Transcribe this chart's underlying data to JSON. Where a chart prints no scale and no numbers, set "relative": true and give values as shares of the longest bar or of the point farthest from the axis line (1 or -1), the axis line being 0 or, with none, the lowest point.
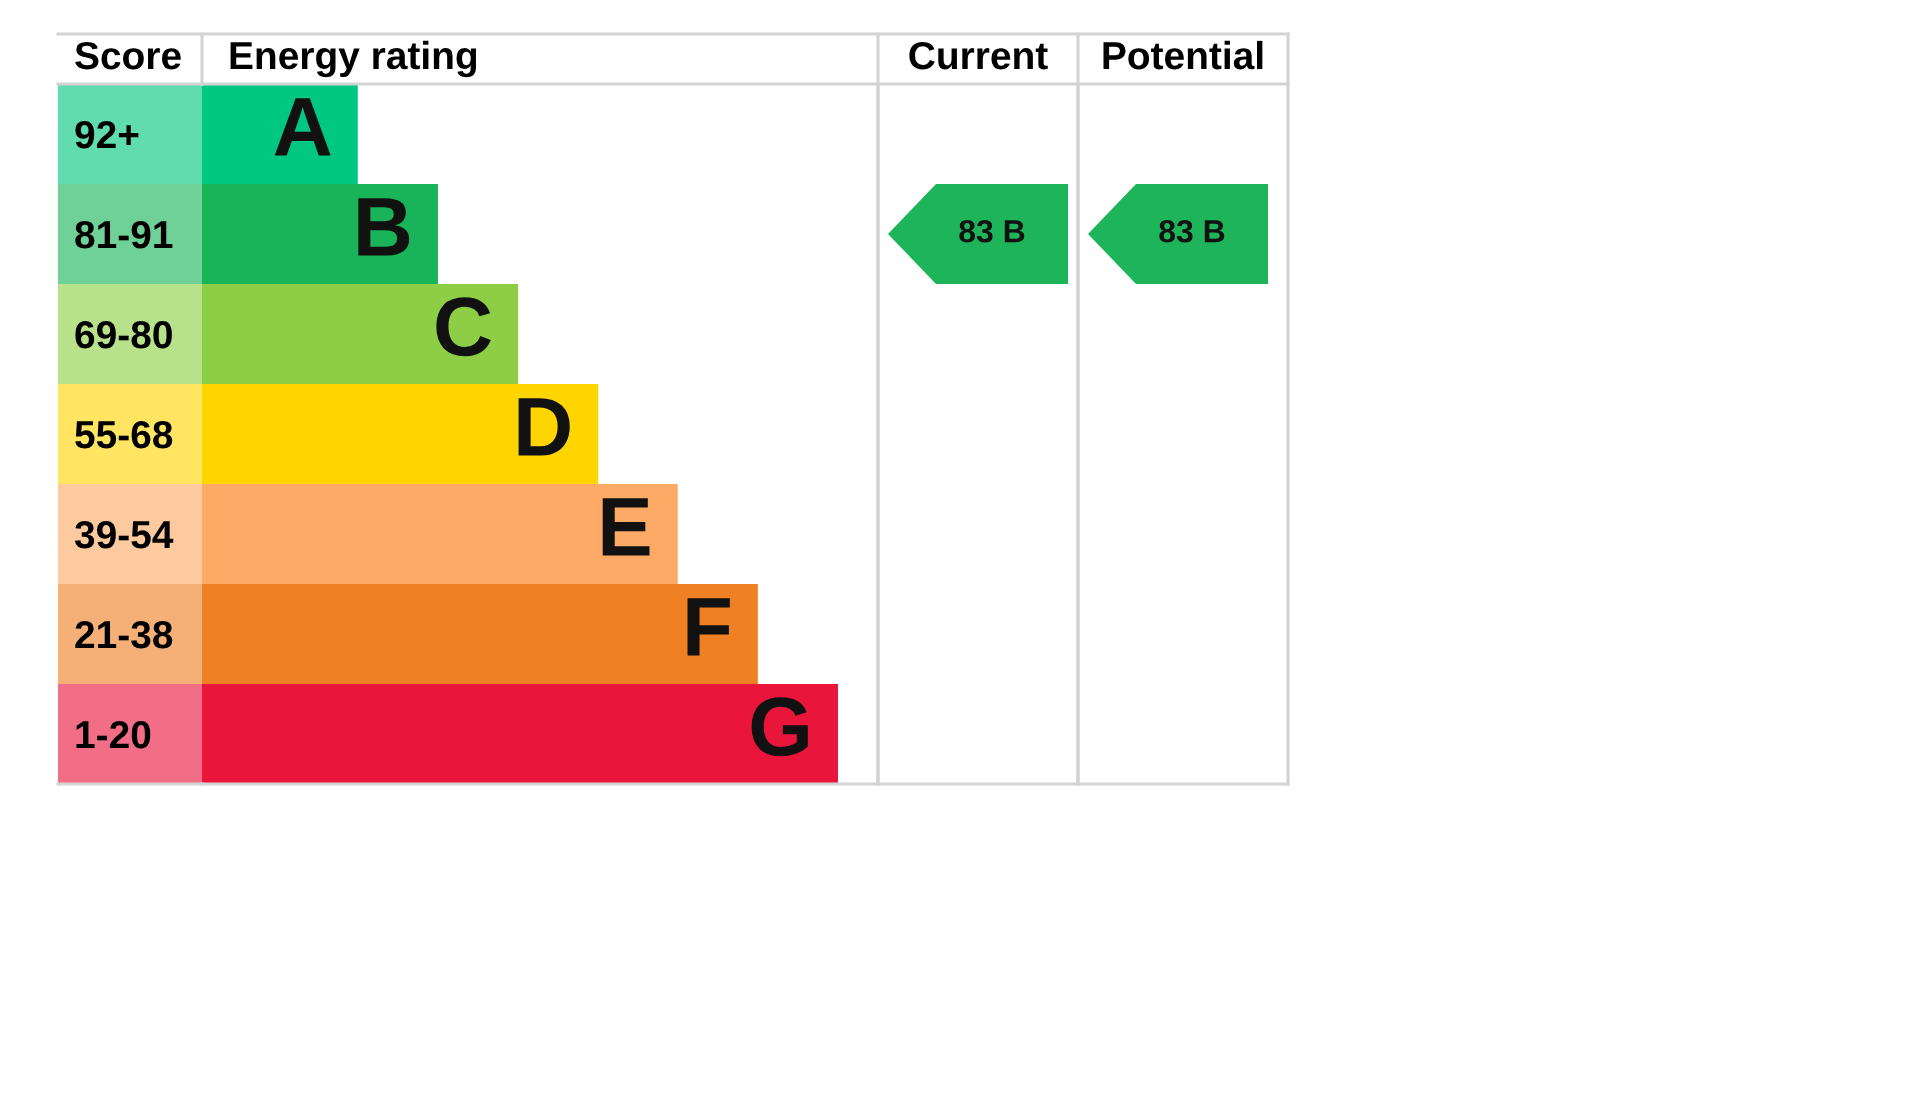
{
  "chart_data": [
    {
      "type": "bar",
      "orientation": "horizontal",
      "relative": true,
      "title": "Energy rating",
      "ylabel": "Score",
      "categories": [
        "92+",
        "81-91",
        "69-80",
        "55-68",
        "39-54",
        "21-38",
        "1-20"
      ],
      "values": [
        0.245,
        0.371,
        0.497,
        0.623,
        0.748,
        0.874,
        1
      ],
      "colors": [
        "#00c781",
        "#19b459",
        "#8dce46",
        "#ffd500",
        "#fcaa65",
        "#ef8023",
        "#e9153b"
      ],
      "annotations": [
        {
          "text": "A",
          "x": 0.245,
          "y": "92+"
        },
        {
          "text": "B",
          "x": 0.371,
          "y": "81-91"
        },
        {
          "text": "C",
          "x": 0.497,
          "y": "69-80"
        },
        {
          "text": "D",
          "x": 0.623,
          "y": "55-68"
        },
        {
          "text": "E",
          "x": 0.748,
          "y": "39-54"
        },
        {
          "text": "F",
          "x": 0.874,
          "y": "21-38"
        },
        {
          "text": "G",
          "x": 1,
          "y": "1-20"
        }
      ]
    },
    {
      "type": "other",
      "title": "Current",
      "categories": [
        null,
        null,
        null,
        null,
        null,
        null,
        null
      ],
      "values": [
        null,
        83,
        null,
        null,
        null,
        null,
        null
      ],
      "value_labels": [
        null,
        "83 B",
        null,
        null,
        null,
        null,
        null
      ],
      "colors": [
        null,
        "#1db45a",
        null,
        null,
        null,
        null,
        null
      ]
    },
    {
      "type": "other",
      "title": "Potential",
      "categories": [
        null,
        null,
        null,
        null,
        null,
        null,
        null
      ],
      "values": [
        null,
        83,
        null,
        null,
        null,
        null,
        null
      ],
      "value_labels": [
        null,
        "83 B",
        null,
        null,
        null,
        null,
        null
      ],
      "colors": [
        null,
        "#1db45a",
        null,
        null,
        null,
        null,
        null
      ]
    }
  ]
}
